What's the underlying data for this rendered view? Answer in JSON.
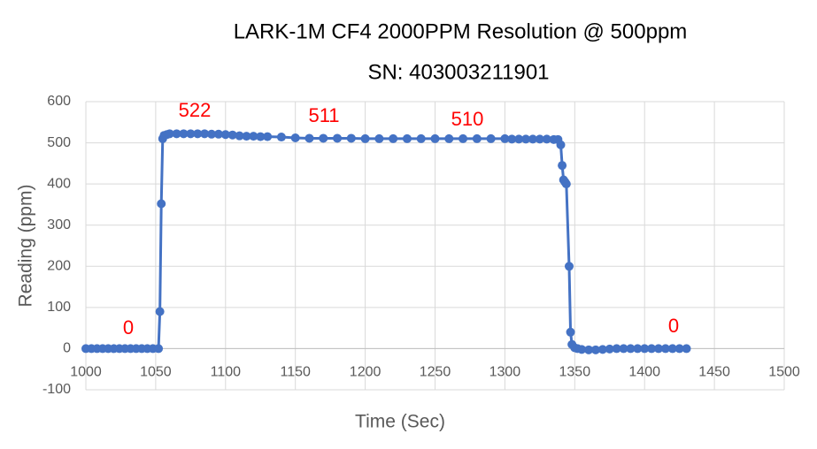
{
  "chart_data": {
    "type": "line",
    "title": "LARK-1M CF4 2000PPM Resolution @ 500ppm",
    "subtitle": "SN: 403003211901",
    "x_label": "Time (Sec)",
    "y_label": "Reading (ppm)",
    "x": [
      1000,
      1004,
      1008,
      1012,
      1016,
      1020,
      1024,
      1028,
      1032,
      1036,
      1040,
      1044,
      1048,
      1052,
      1053,
      1054,
      1055,
      1056,
      1058,
      1060,
      1065,
      1070,
      1075,
      1080,
      1085,
      1090,
      1095,
      1100,
      1105,
      1110,
      1115,
      1120,
      1125,
      1130,
      1140,
      1150,
      1160,
      1170,
      1180,
      1190,
      1200,
      1210,
      1220,
      1230,
      1240,
      1250,
      1260,
      1270,
      1280,
      1290,
      1300,
      1305,
      1310,
      1315,
      1320,
      1325,
      1330,
      1335,
      1338,
      1340,
      1341,
      1342,
      1343,
      1344,
      1346,
      1347,
      1348,
      1350,
      1352,
      1355,
      1360,
      1365,
      1370,
      1375,
      1380,
      1385,
      1390,
      1395,
      1400,
      1405,
      1410,
      1415,
      1420,
      1425,
      1430
    ],
    "series": [
      {
        "color": "#4472c4",
        "values": [
          0,
          0,
          0,
          0,
          0,
          0,
          0,
          0,
          0,
          0,
          0,
          0,
          0,
          0,
          90,
          352,
          510,
          518,
          520,
          522,
          522,
          522,
          522,
          522,
          522,
          521,
          521,
          520,
          519,
          517,
          516,
          516,
          515,
          515,
          514,
          512,
          511,
          511,
          511,
          511,
          510,
          510,
          510,
          510,
          510,
          510,
          510,
          510,
          510,
          510,
          510,
          509,
          509,
          509,
          509,
          509,
          509,
          508,
          508,
          495,
          445,
          410,
          405,
          400,
          200,
          40,
          10,
          2,
          0,
          -2,
          -3,
          -3,
          -2,
          -1,
          0,
          0,
          0,
          0,
          0,
          0,
          0,
          0,
          0,
          0,
          0
        ]
      }
    ],
    "annotations": [
      "0",
      "522",
      "511",
      "510",
      "0"
    ],
    "xlim": [
      1000,
      1500
    ],
    "xticks": [
      1000,
      1050,
      1100,
      1150,
      1200,
      1250,
      1300,
      1350,
      1400,
      1450,
      1500
    ],
    "ylim": [
      -100,
      600
    ],
    "yticks": [
      -100,
      0,
      100,
      200,
      300,
      400,
      500,
      600
    ],
    "grid": true
  }
}
